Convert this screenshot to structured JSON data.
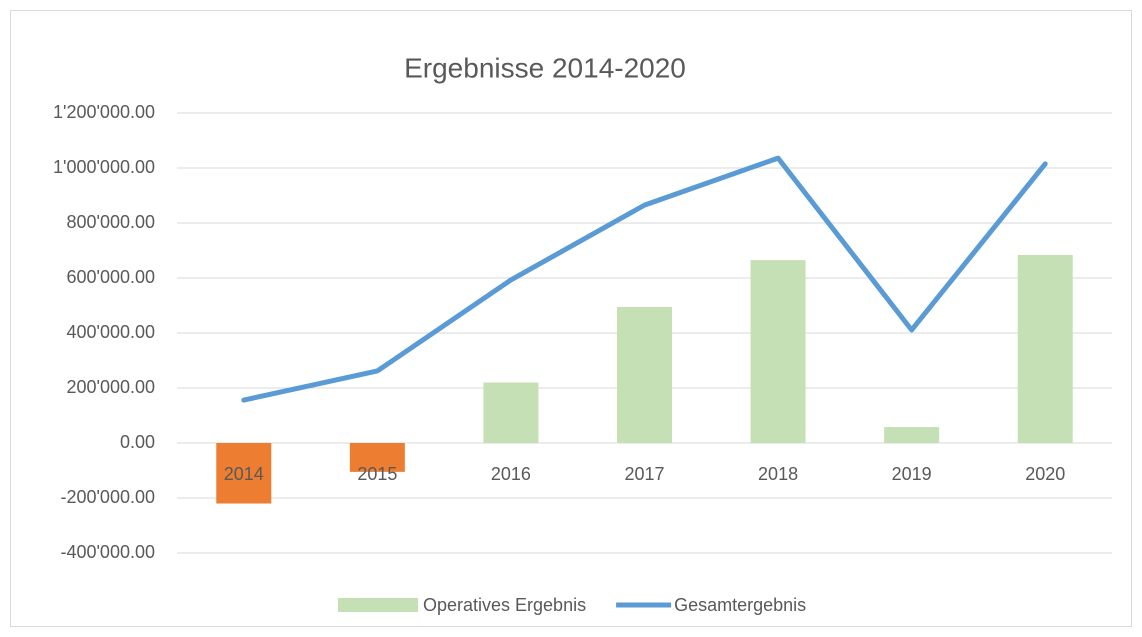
{
  "chart_data": {
    "type": "bar_line",
    "title": "Ergebnisse 2014-2020",
    "categories": [
      "2014",
      "2015",
      "2016",
      "2017",
      "2018",
      "2019",
      "2020"
    ],
    "series": [
      {
        "name": "Operatives Ergebnis",
        "type": "bar",
        "color": "#c5e0b4",
        "negative_color": "#ed7d31",
        "values": [
          -220000,
          -105000,
          220000,
          495000,
          665000,
          58000,
          684000
        ]
      },
      {
        "name": "Gesamtergebnis",
        "type": "line",
        "color": "#5b9bd5",
        "values": [
          156000,
          262000,
          593000,
          865000,
          1036000,
          411000,
          1015000
        ]
      }
    ],
    "ylim": [
      -400000,
      1200000
    ],
    "yticks": [
      {
        "value": -400000,
        "label": "-400'000.00"
      },
      {
        "value": -200000,
        "label": "-200'000.00"
      },
      {
        "value": 0,
        "label": "0.00"
      },
      {
        "value": 200000,
        "label": "200'000.00"
      },
      {
        "value": 400000,
        "label": "400'000.00"
      },
      {
        "value": 600000,
        "label": "600'000.00"
      },
      {
        "value": 800000,
        "label": "800'000.00"
      },
      {
        "value": 1000000,
        "label": "1'000'000.00"
      },
      {
        "value": 1200000,
        "label": "1'200'000.00"
      }
    ],
    "grid": true,
    "legend": "bottom"
  }
}
